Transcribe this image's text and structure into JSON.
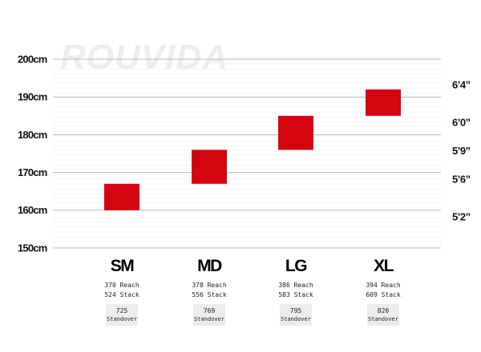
{
  "watermark": "ROUVIDA",
  "chart_data": {
    "type": "range-bar",
    "ylim": [
      150,
      200
    ],
    "yticks": [
      "150cm",
      "160cm",
      "170cm",
      "180cm",
      "190cm",
      "200cm"
    ],
    "ytick_values": [
      150,
      160,
      170,
      180,
      190,
      200
    ],
    "right_ticks": [
      {
        "label": "6’4”",
        "value": 193.0
      },
      {
        "label": "6’0”",
        "value": 183.0
      },
      {
        "label": "5’9”",
        "value": 175.5
      },
      {
        "label": "5’6”",
        "value": 168.0
      },
      {
        "label": "5’2”",
        "value": 158.0
      }
    ],
    "bar_color": "#d40511",
    "grid": true,
    "sizes": [
      {
        "label": "SM",
        "min": 160,
        "max": 167,
        "reach": "370 Reach",
        "stack": "524 Stack",
        "standover": "725",
        "standover_label": "Standover"
      },
      {
        "label": "MD",
        "min": 167,
        "max": 176,
        "reach": "378 Reach",
        "stack": "556 Stack",
        "standover": "769",
        "standover_label": "Standover"
      },
      {
        "label": "LG",
        "min": 176,
        "max": 185,
        "reach": "386 Reach",
        "stack": "583 Stack",
        "standover": "795",
        "standover_label": "Standover"
      },
      {
        "label": "XL",
        "min": 185,
        "max": 192,
        "reach": "394 Reach",
        "stack": "609 Stack",
        "standover": "820",
        "standover_label": "Standover"
      }
    ]
  }
}
